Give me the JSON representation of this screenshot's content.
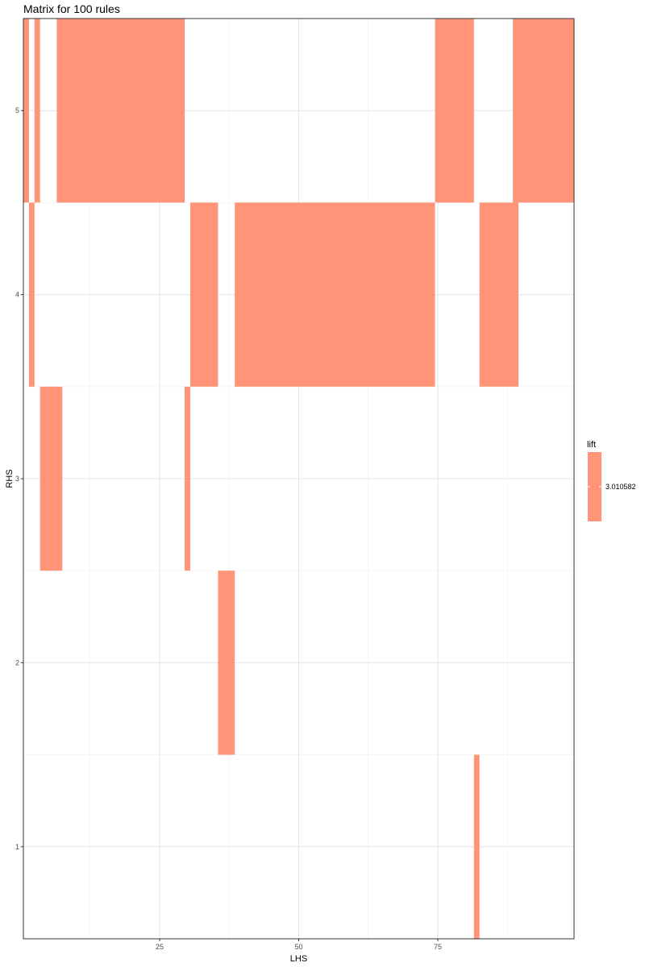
{
  "chart_data": {
    "type": "heatmap",
    "title": "Matrix for 100 rules",
    "xlabel": "LHS",
    "ylabel": "RHS",
    "xlim": [
      0.5,
      99.5
    ],
    "ylim": [
      0.5,
      5.5
    ],
    "x_ticks": [
      25,
      50,
      75
    ],
    "y_ticks": [
      1,
      2,
      3,
      4,
      5
    ],
    "grid": true,
    "legend_position": "right",
    "legend": {
      "title": "lift",
      "label": "3.010582"
    },
    "fill_color": "#FF9478",
    "cells": [
      {
        "rhs": 5,
        "lhs_from": 1,
        "lhs_to": 1
      },
      {
        "rhs": 5,
        "lhs_from": 3,
        "lhs_to": 3
      },
      {
        "rhs": 5,
        "lhs_from": 7,
        "lhs_to": 29
      },
      {
        "rhs": 5,
        "lhs_from": 75,
        "lhs_to": 81
      },
      {
        "rhs": 5,
        "lhs_from": 89,
        "lhs_to": 99
      },
      {
        "rhs": 4,
        "lhs_from": 2,
        "lhs_to": 2
      },
      {
        "rhs": 4,
        "lhs_from": 31,
        "lhs_to": 35
      },
      {
        "rhs": 4,
        "lhs_from": 39,
        "lhs_to": 74
      },
      {
        "rhs": 4,
        "lhs_from": 83,
        "lhs_to": 89
      },
      {
        "rhs": 3,
        "lhs_from": 4,
        "lhs_to": 7
      },
      {
        "rhs": 3,
        "lhs_from": 30,
        "lhs_to": 30
      },
      {
        "rhs": 2,
        "lhs_from": 36,
        "lhs_to": 38
      },
      {
        "rhs": 1,
        "lhs_from": 82,
        "lhs_to": 82
      }
    ]
  }
}
